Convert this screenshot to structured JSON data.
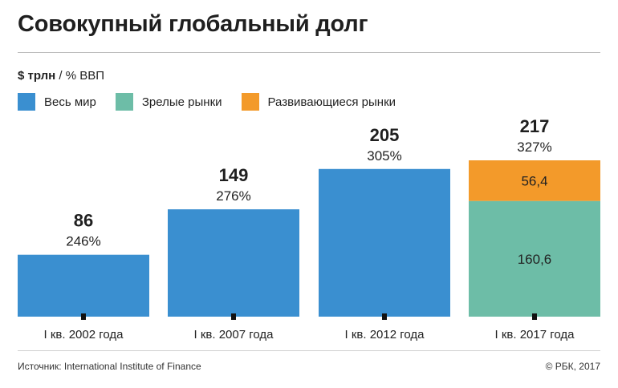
{
  "title": "Совокупный глобальный долг",
  "units": {
    "bold": "$ трлн",
    "rest": " / % ВВП"
  },
  "legend": [
    {
      "label": "Весь мир",
      "color": "#3a8fd0"
    },
    {
      "label": "Зрелые рынки",
      "color": "#6dbda7"
    },
    {
      "label": "Развивающиеся рынки",
      "color": "#f39a2a"
    }
  ],
  "source": "Источник: International Institute of Finance",
  "copyright": "© РБК, 2017",
  "chart_data": {
    "type": "bar",
    "title": "Совокупный глобальный долг",
    "unit": "$ трлн / % ВВП",
    "categories": [
      "I кв. 2002 года",
      "I кв. 2007 года",
      "I кв. 2012 года",
      "I кв. 2017 года"
    ],
    "totals": [
      86,
      149,
      205,
      217
    ],
    "gdp_percent": [
      "246%",
      "276%",
      "305%",
      "327%"
    ],
    "series": [
      {
        "name": "Весь мир",
        "values": [
          86,
          149,
          205,
          null
        ],
        "color": "#3a8fd0"
      },
      {
        "name": "Зрелые рынки",
        "values": [
          null,
          null,
          null,
          160.6
        ],
        "color": "#6dbda7"
      },
      {
        "name": "Развивающиеся рынки",
        "values": [
          null,
          null,
          null,
          56.4
        ],
        "color": "#f39a2a"
      }
    ],
    "segment_labels": [
      "160,6",
      "56,4"
    ],
    "grid": false
  }
}
